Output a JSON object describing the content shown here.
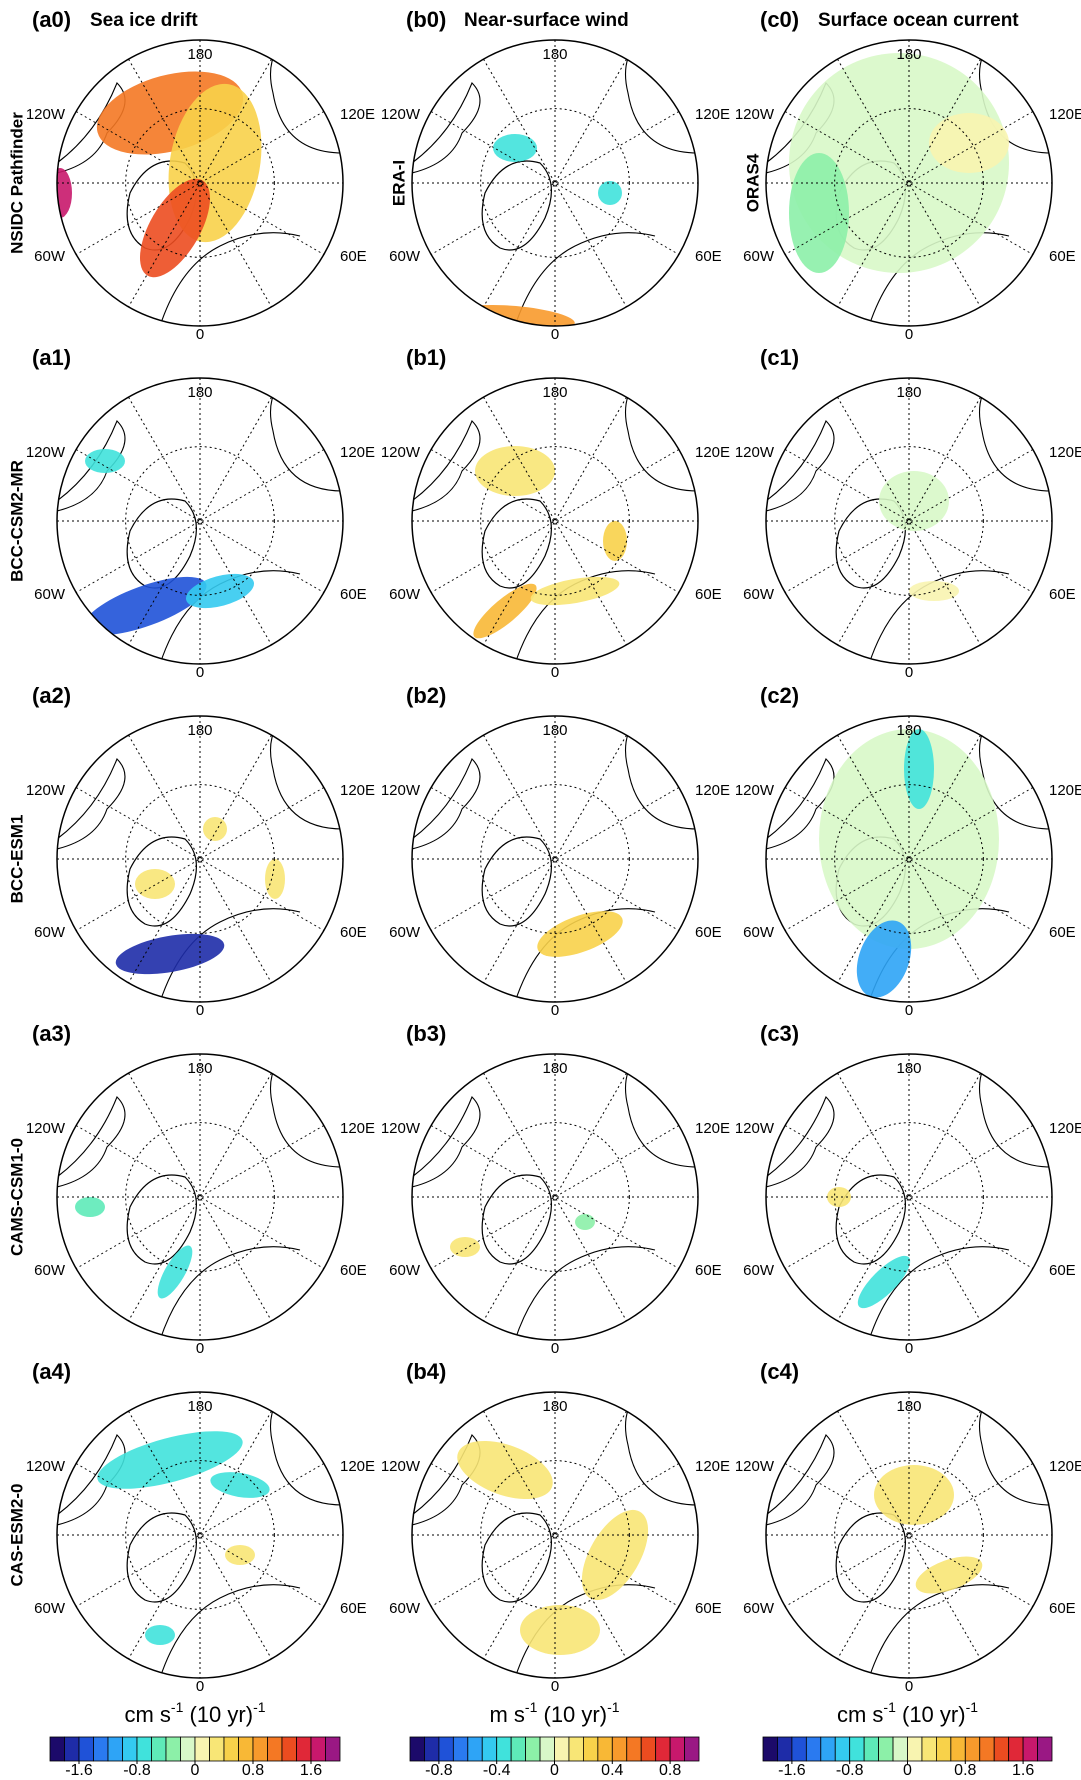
{
  "columns": [
    {
      "title": "Sea ice drift"
    },
    {
      "title": "Near-surface wind"
    },
    {
      "title": "Surface ocean current"
    }
  ],
  "rows": [
    {
      "names": [
        "NSIDC Pathfinder",
        "ERA-I",
        "ORAS4"
      ],
      "panels": [
        "(a0)",
        "(b0)",
        "(c0)"
      ]
    },
    {
      "names": [
        "BCC-CSM2-MR"
      ],
      "panels": [
        "(a1)",
        "(b1)",
        "(c1)"
      ]
    },
    {
      "names": [
        "BCC-ESM1"
      ],
      "panels": [
        "(a2)",
        "(b2)",
        "(c2)"
      ]
    },
    {
      "names": [
        "CAMS-CSM1-0"
      ],
      "panels": [
        "(a3)",
        "(b3)",
        "(c3)"
      ]
    },
    {
      "names": [
        "CAS-ESM2-0"
      ],
      "panels": [
        "(a4)",
        "(b4)",
        "(c4)"
      ]
    }
  ],
  "lon_labels": {
    "top": "180",
    "upper_left": "120W",
    "upper_right": "120E",
    "lower_left": "60W",
    "lower_right": "60E",
    "bottom": "0"
  },
  "colorbars": [
    {
      "unit": {
        "base": "cm s",
        "exp": "-1",
        "mid": " (10 yr)",
        "exp2": "-1"
      },
      "lim": [
        -2,
        2
      ],
      "ticks": [
        -1.6,
        -0.8,
        0,
        0.8,
        1.6
      ]
    },
    {
      "unit": {
        "base": "m s",
        "exp": "-1",
        "mid": " (10 yr)",
        "exp2": "-1"
      },
      "lim": [
        -1,
        1
      ],
      "ticks": [
        -0.8,
        -0.4,
        0,
        0.4,
        0.8
      ]
    },
    {
      "unit": {
        "base": "cm s",
        "exp": "-1",
        "mid": " (10 yr)",
        "exp2": "-1"
      },
      "lim": [
        -2,
        2
      ],
      "ticks": [
        -1.6,
        -0.8,
        0,
        0.8,
        1.6
      ]
    }
  ],
  "palette": [
    "#1c0a6a",
    "#1e2ca8",
    "#1f52d8",
    "#2a7af0",
    "#2ea4f6",
    "#34caf0",
    "#40e2dc",
    "#5eeab8",
    "#8cf0a8",
    "#d8f8c8",
    "#f8f4b0",
    "#f8e676",
    "#f8d24a",
    "#f8b836",
    "#f89a2c",
    "#f47824",
    "#ec4c20",
    "#e02838",
    "#c8186c",
    "#9a1884"
  ]
}
